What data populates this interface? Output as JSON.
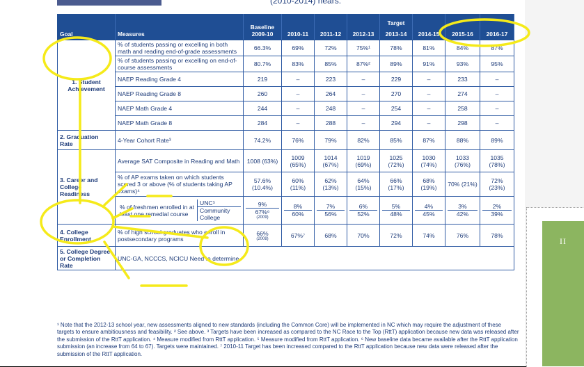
{
  "top_note": "(2010-2014) hears.",
  "side_tab_label": "II",
  "header": {
    "goal": "Goal",
    "measures": "Measures",
    "baseline": "Baseline 2009-10",
    "target": "Target",
    "years": [
      "2010-11",
      "2011-12",
      "2012-13",
      "2013-14",
      "2014-15",
      "2015-16",
      "2016-17"
    ]
  },
  "rows": [
    {
      "goal": "1. Student Achievement",
      "measure": "% of students passing or excelling in both math and reading end-of-grade assessments",
      "baseline": "66.3%",
      "values": [
        "69%",
        "72%",
        "75%¹",
        "78%",
        "81%",
        "84%",
        "87%"
      ]
    },
    {
      "measure": "% of students passing or excelling on end-of-course assessments",
      "baseline": "80.7%",
      "values": [
        "83%",
        "85%",
        "87%²",
        "89%",
        "91%",
        "93%",
        "95%"
      ]
    },
    {
      "measure": "NAEP Reading Grade 4",
      "baseline": "219",
      "values": [
        "–",
        "223",
        "–",
        "229",
        "–",
        "233",
        "–"
      ]
    },
    {
      "measure": "NAEP Reading Grade 8",
      "baseline": "260",
      "values": [
        "–",
        "264",
        "–",
        "270",
        "–",
        "274",
        "–"
      ]
    },
    {
      "measure": "NAEP Math Grade 4",
      "baseline": "244",
      "values": [
        "–",
        "248",
        "–",
        "254",
        "–",
        "258",
        "–"
      ]
    },
    {
      "measure": "NAEP Math Grade 8",
      "baseline": "284",
      "values": [
        "–",
        "288",
        "–",
        "294",
        "–",
        "298",
        "–"
      ]
    },
    {
      "goal": "2. Graduation Rate",
      "measure": "4-Year Cohort Rate³",
      "baseline": "74.2%",
      "values": [
        "76%",
        "79%",
        "82%",
        "85%",
        "87%",
        "88%",
        "89%"
      ]
    },
    {
      "goal": "3. Career and College Readiness",
      "measure": "Average SAT Composite in Reading and Math",
      "baseline": "1008 (63%)",
      "values": [
        "1009 (65%)",
        "1014 (67%)",
        "1019 (69%)",
        "1025 (72%)",
        "1030 (74%)",
        "1033 (76%)",
        "1035 (78%)"
      ]
    },
    {
      "measure": "% of AP exams taken on which students scored 3 or above (% of students taking AP exams)⁴",
      "baseline": "57.6% (10.4%)",
      "values": [
        "60% (11%)",
        "62% (13%)",
        "64% (15%)",
        "66% (17%)",
        "68% (19%)",
        "70% (21%)",
        "72% (23%)"
      ]
    },
    {
      "measure": "% of freshmen enrolled in at least one remedial course",
      "sub": [
        "UNC⁵",
        "Community College"
      ],
      "baseline": [
        "9%",
        "67%⁶"
      ],
      "baseline_note": "(2009)",
      "values": [
        [
          "8%",
          "7%",
          "6%",
          "5%",
          "4%",
          "3%",
          "2%"
        ],
        [
          "60%",
          "56%",
          "52%",
          "48%",
          "45%",
          "42%",
          "39%"
        ]
      ]
    },
    {
      "goal": "4. College Enrollment",
      "measure": "% of high school graduates who enroll in postsecondary programs",
      "baseline": "66%",
      "baseline_note": "(2008)",
      "values": [
        "67%⁷",
        "68%",
        "70%",
        "72%",
        "74%",
        "76%",
        "78%"
      ]
    },
    {
      "goal": "5. College Degree or Completion Rate",
      "measure": "UNC-GA, NCCCS, NCICU Need to determine"
    }
  ],
  "footnote": "¹ Note that the 2012-13 school year, new assessments aligned to new standards (including the Common Core) will be implemented in NC which may require the adjustment of these targets to ensure ambitiousness and feasibility. ² See above. ³ Targets have been increased as compared to the NC Race to the Top (RttT) application because new data was released after the submission of the RttT application. ⁴ Measure modified from RttT application. ⁵ Measure modified from RttT application. ⁶ New baseline data became available after the RttT application submission (an increase from 64 to 67). Targets were maintained. ⁷ 2010-11 Target has been increased compared to the RttT application because new data were released after the submission of the RttT application."
}
